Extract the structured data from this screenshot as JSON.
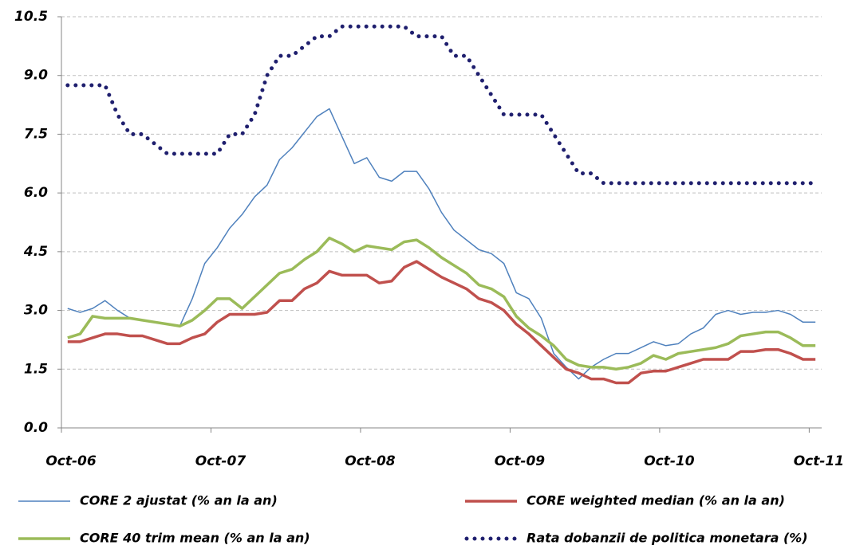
{
  "chart_data": {
    "type": "line",
    "categories": [
      "Oct-06",
      null,
      null,
      null,
      null,
      null,
      null,
      null,
      null,
      null,
      null,
      null,
      "Oct-07",
      null,
      null,
      null,
      null,
      null,
      null,
      null,
      null,
      null,
      null,
      null,
      "Oct-08",
      null,
      null,
      null,
      null,
      null,
      null,
      null,
      null,
      null,
      null,
      null,
      "Oct-09",
      null,
      null,
      null,
      null,
      null,
      null,
      null,
      null,
      null,
      null,
      null,
      "Oct-10",
      null,
      null,
      null,
      null,
      null,
      null,
      null,
      null,
      null,
      null,
      null,
      "Oct-11"
    ],
    "ylim": [
      0,
      10.5
    ],
    "yticks": [
      {
        "value": 0,
        "label": "0.0"
      },
      {
        "value": 1.5,
        "label": "1.5"
      },
      {
        "value": 3,
        "label": "3.0"
      },
      {
        "value": 4.5,
        "label": "4.5"
      },
      {
        "value": 6,
        "label": "6.0"
      },
      {
        "value": 7.5,
        "label": "7.5"
      },
      {
        "value": 9,
        "label": "9.0"
      },
      {
        "value": 10.5,
        "label": "10.5"
      }
    ],
    "grid": true,
    "legend": "bottom",
    "series": [
      {
        "name": "CORE 2 ajustat (% an la an)",
        "color": "#4f81bd",
        "linewidth": 1.5,
        "linestyle": "solid",
        "values": [
          3.05,
          2.95,
          3.05,
          3.25,
          3.0,
          2.8,
          2.75,
          2.7,
          2.65,
          2.6,
          3.3,
          4.2,
          4.6,
          5.1,
          5.45,
          5.9,
          6.2,
          6.85,
          7.15,
          7.55,
          7.95,
          8.15,
          7.45,
          6.75,
          6.9,
          6.4,
          6.3,
          6.55,
          6.55,
          6.1,
          5.5,
          5.05,
          4.8,
          4.55,
          4.45,
          4.2,
          3.45,
          3.3,
          2.8,
          1.9,
          1.55,
          1.25,
          1.55,
          1.75,
          1.9,
          1.9,
          2.05,
          2.2,
          2.1,
          2.15,
          2.4,
          2.55,
          2.9,
          3.0,
          2.9,
          2.95,
          2.95,
          3.0,
          2.9,
          2.7,
          2.7
        ]
      },
      {
        "name": "CORE weighted median (% an la an)",
        "color": "#c0504d",
        "linewidth": 3.5,
        "linestyle": "solid",
        "values": [
          2.2,
          2.2,
          2.3,
          2.4,
          2.4,
          2.35,
          2.35,
          2.25,
          2.15,
          2.15,
          2.3,
          2.4,
          2.7,
          2.9,
          2.9,
          2.9,
          2.95,
          3.25,
          3.25,
          3.55,
          3.7,
          4.0,
          3.9,
          3.9,
          3.9,
          3.7,
          3.75,
          4.1,
          4.25,
          4.05,
          3.85,
          3.7,
          3.55,
          3.3,
          3.2,
          3.0,
          2.65,
          2.4,
          2.1,
          1.8,
          1.5,
          1.4,
          1.25,
          1.25,
          1.15,
          1.15,
          1.4,
          1.45,
          1.45,
          1.55,
          1.65,
          1.75,
          1.75,
          1.75,
          1.95,
          1.95,
          2.0,
          2.0,
          1.9,
          1.75,
          1.75
        ]
      },
      {
        "name": "CORE 40 trim mean (% an la an)",
        "color": "#9bbb59",
        "linewidth": 3.5,
        "linestyle": "solid",
        "values": [
          2.3,
          2.4,
          2.85,
          2.8,
          2.8,
          2.8,
          2.75,
          2.7,
          2.65,
          2.6,
          2.75,
          3.0,
          3.3,
          3.3,
          3.05,
          3.35,
          3.65,
          3.95,
          4.05,
          4.3,
          4.5,
          4.85,
          4.7,
          4.5,
          4.65,
          4.6,
          4.55,
          4.75,
          4.8,
          4.6,
          4.35,
          4.15,
          3.95,
          3.65,
          3.55,
          3.35,
          2.85,
          2.55,
          2.35,
          2.1,
          1.75,
          1.6,
          1.55,
          1.55,
          1.5,
          1.55,
          1.65,
          1.85,
          1.75,
          1.9,
          1.95,
          2.0,
          2.05,
          2.15,
          2.35,
          2.4,
          2.45,
          2.45,
          2.3,
          2.1,
          2.1
        ]
      },
      {
        "name": "Rata dobanzii de politica monetara (%)",
        "color": "#1f1f6e",
        "linewidth": 5,
        "linestyle": "dotted",
        "values": [
          8.75,
          8.75,
          8.75,
          8.75,
          8.0,
          7.5,
          7.5,
          7.25,
          7.0,
          7.0,
          7.0,
          7.0,
          7.0,
          7.5,
          7.5,
          8.0,
          9.0,
          9.5,
          9.5,
          9.75,
          10.0,
          10.0,
          10.25,
          10.25,
          10.25,
          10.25,
          10.25,
          10.25,
          10.0,
          10.0,
          10.0,
          9.5,
          9.5,
          9.0,
          8.5,
          8.0,
          8.0,
          8.0,
          8.0,
          7.5,
          7.0,
          6.5,
          6.5,
          6.25,
          6.25,
          6.25,
          6.25,
          6.25,
          6.25,
          6.25,
          6.25,
          6.25,
          6.25,
          6.25,
          6.25,
          6.25,
          6.25,
          6.25,
          6.25,
          6.25,
          6.25
        ]
      }
    ]
  }
}
